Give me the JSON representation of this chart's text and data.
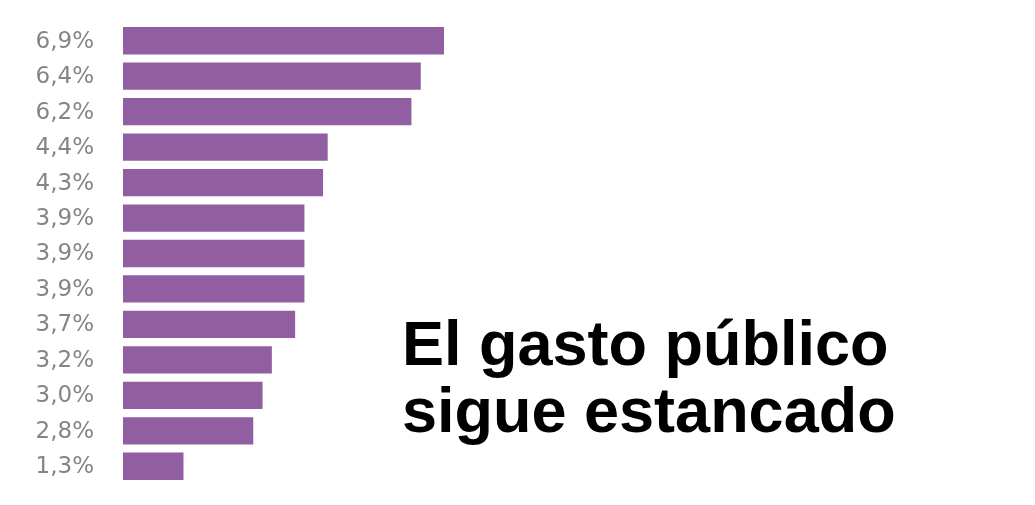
{
  "chart_data": {
    "type": "bar",
    "orientation": "horizontal",
    "title": "El gasto público sigue estancado",
    "categories": [
      null,
      null,
      null,
      null,
      null,
      null,
      null,
      null,
      null,
      null,
      null,
      null,
      null
    ],
    "values": [
      6.9,
      6.4,
      6.2,
      4.4,
      4.3,
      3.9,
      3.9,
      3.9,
      3.7,
      3.2,
      3.0,
      2.8,
      1.3
    ],
    "value_labels": [
      "6,9%",
      "6,4%",
      "6,2%",
      "4,4%",
      "4,3%",
      "3,9%",
      "3,9%",
      "3,9%",
      "3,7%",
      "3,2%",
      "3,0%",
      "2,8%",
      "1,3%"
    ],
    "color": "#915ea1"
  }
}
